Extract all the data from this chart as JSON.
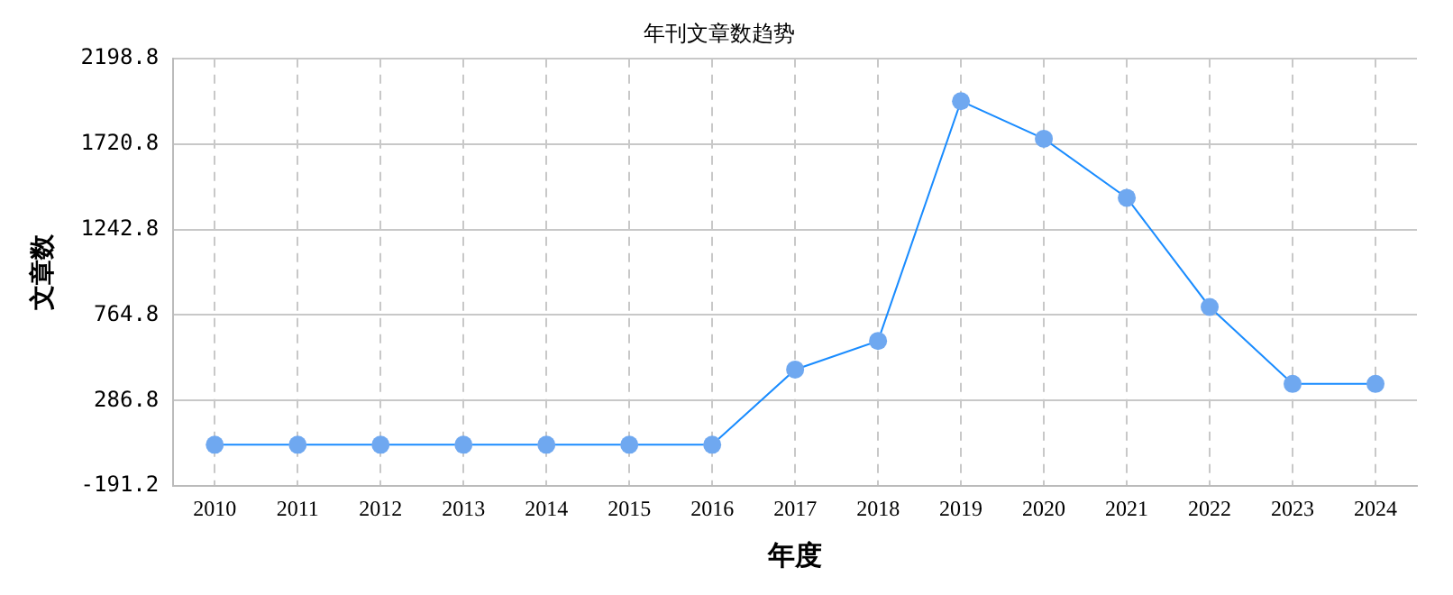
{
  "chart_data": {
    "type": "line",
    "title": "年刊文章数趋势",
    "xlabel": "年度",
    "ylabel": "文章数",
    "categories": [
      "2010",
      "2011",
      "2012",
      "2013",
      "2014",
      "2015",
      "2016",
      "2017",
      "2018",
      "2019",
      "2020",
      "2021",
      "2022",
      "2023",
      "2024"
    ],
    "series": [
      {
        "color": "#1a8cff",
        "values": [
          40,
          40,
          40,
          40,
          40,
          40,
          40,
          460,
          620,
          1960,
          1750,
          1420,
          810,
          380,
          380
        ]
      }
    ],
    "ylim": [
      -191.2,
      2198.8
    ],
    "yticks": [
      -191.2,
      286.8,
      764.8,
      1242.8,
      1720.8,
      2198.8
    ],
    "grid": true,
    "marker": "circle",
    "legend": false
  }
}
